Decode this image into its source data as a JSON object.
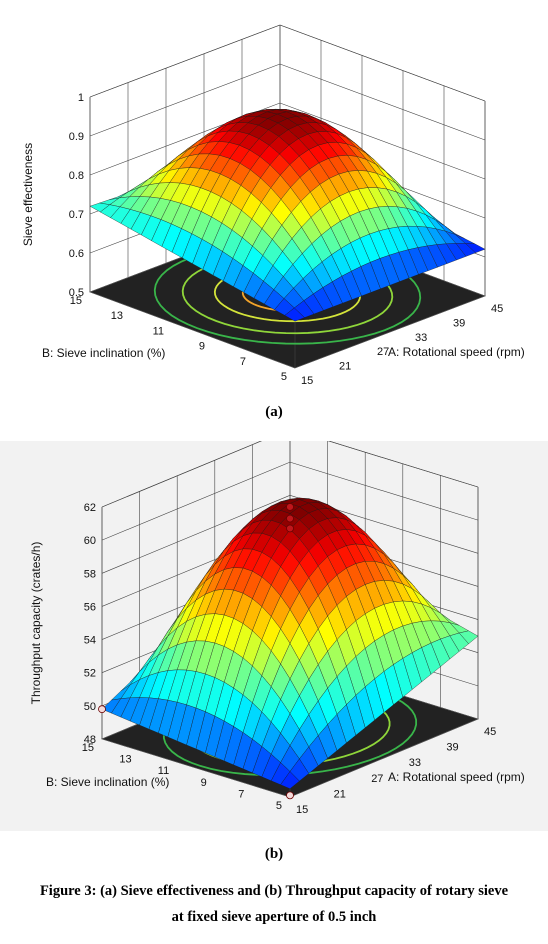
{
  "chart_data": [
    {
      "type": "surface",
      "panel_label": "(a)",
      "zlabel": "Sieve effectiveness",
      "xlabel": "A: Rotational speed (rpm)",
      "ylabel": "B: Sieve inclination (%)",
      "zticks": [
        "0.5",
        "0.6",
        "0.7",
        "0.8",
        "0.9",
        "1"
      ],
      "xticks": [
        "15",
        "21",
        "27",
        "33",
        "39",
        "45"
      ],
      "yticks": [
        "5",
        "7",
        "9",
        "11",
        "13",
        "15"
      ],
      "zlim": [
        0.5,
        1.0
      ],
      "xlim": [
        15,
        45
      ],
      "ylim": [
        5,
        15
      ],
      "peak": 0.95,
      "corner_values": {
        "A15_B5": 0.62,
        "A15_B15": 0.72,
        "A45_B15": 0.7,
        "A45_B5": 0.62
      },
      "floor_contours": true,
      "design_points": false
    },
    {
      "type": "surface",
      "panel_label": "(b)",
      "zlabel": "Throughput capacity (crates/h)",
      "xlabel": "A: Rotational speed (rpm)",
      "ylabel": "B: Sieve inclination (%)",
      "zticks": [
        "48",
        "50",
        "52",
        "54",
        "56",
        "58",
        "60",
        "62"
      ],
      "xticks": [
        "15",
        "21",
        "27",
        "33",
        "39",
        "45"
      ],
      "yticks": [
        "5",
        "7",
        "9",
        "11",
        "13",
        "15"
      ],
      "zlim": [
        48,
        62
      ],
      "xlim": [
        15,
        45
      ],
      "ylim": [
        5,
        15
      ],
      "peak": 61.0,
      "corner_values": {
        "A15_B5": 48.5,
        "A15_B15": 49.8,
        "A45_B15": 56.0,
        "A45_B5": 53.0
      },
      "floor_contours": true,
      "design_points": true
    }
  ],
  "caption": {
    "line1": "Figure 3: (a) Sieve effectiveness and (b) Throughput capacity of rotary sieve",
    "line2": "at fixed sieve aperture of 0.5 inch"
  }
}
